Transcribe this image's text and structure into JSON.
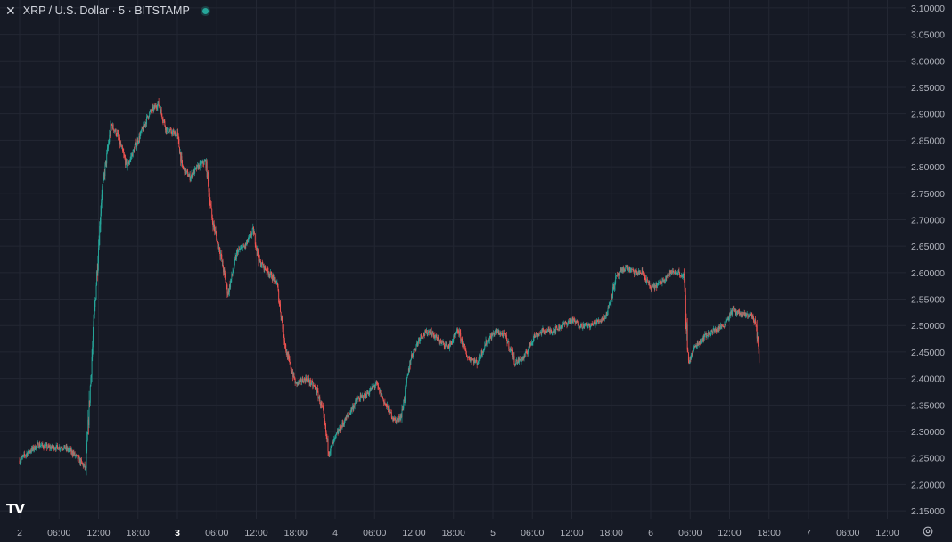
{
  "header": {
    "symbol_title": "XRP / U.S. Dollar · 5 · BITSTAMP",
    "close_icon": "close-icon",
    "status_color": "#26a69a"
  },
  "logo_text": "TV",
  "colors": {
    "background": "#161a25",
    "grid": "#232733",
    "up": "#26a69a",
    "down": "#ef5350",
    "axis_text": "#b2b5be"
  },
  "chart_data": {
    "type": "candlestick",
    "interval": "5",
    "exchange": "BITSTAMP",
    "title": "XRP / U.S. Dollar · 5 · BITSTAMP",
    "y_axis": {
      "ylim": [
        2.135,
        3.115
      ],
      "ticks": [
        "3.10000",
        "3.05000",
        "3.00000",
        "2.95000",
        "2.90000",
        "2.85000",
        "2.80000",
        "2.75000",
        "2.70000",
        "2.65000",
        "2.60000",
        "2.55000",
        "2.50000",
        "2.45000",
        "2.40000",
        "2.35000",
        "2.30000",
        "2.25000",
        "2.20000",
        "2.15000"
      ],
      "position": "right"
    },
    "x_axis": {
      "ticks": [
        {
          "label": "2",
          "bold": false
        },
        {
          "label": "06:00",
          "bold": false
        },
        {
          "label": "12:00",
          "bold": false
        },
        {
          "label": "18:00",
          "bold": false
        },
        {
          "label": "3",
          "bold": true
        },
        {
          "label": "06:00",
          "bold": false
        },
        {
          "label": "12:00",
          "bold": false
        },
        {
          "label": "18:00",
          "bold": false
        },
        {
          "label": "4",
          "bold": false
        },
        {
          "label": "06:00",
          "bold": false
        },
        {
          "label": "12:00",
          "bold": false
        },
        {
          "label": "18:00",
          "bold": false
        },
        {
          "label": "5",
          "bold": false
        },
        {
          "label": "06:00",
          "bold": false
        },
        {
          "label": "12:00",
          "bold": false
        },
        {
          "label": "18:00",
          "bold": false
        },
        {
          "label": "6",
          "bold": false
        },
        {
          "label": "06:00",
          "bold": false
        },
        {
          "label": "12:00",
          "bold": false
        },
        {
          "label": "18:00",
          "bold": false
        },
        {
          "label": "7",
          "bold": false
        },
        {
          "label": "06:00",
          "bold": false
        },
        {
          "label": "12:00",
          "bold": false
        }
      ]
    },
    "grid": true,
    "price_path": [
      [
        0,
        2.245
      ],
      [
        0.05,
        2.26
      ],
      [
        0.12,
        2.275
      ],
      [
        0.18,
        2.27
      ],
      [
        0.22,
        2.27
      ],
      [
        0.28,
        2.27
      ],
      [
        0.33,
        2.262
      ],
      [
        0.38,
        2.245
      ],
      [
        0.42,
        2.23
      ],
      [
        0.46,
        2.45
      ],
      [
        0.52,
        2.75
      ],
      [
        0.58,
        2.88
      ],
      [
        0.62,
        2.86
      ],
      [
        0.68,
        2.8
      ],
      [
        0.75,
        2.85
      ],
      [
        0.82,
        2.9
      ],
      [
        0.88,
        2.92
      ],
      [
        0.93,
        2.87
      ],
      [
        1.0,
        2.86
      ],
      [
        1.03,
        2.8
      ],
      [
        1.08,
        2.78
      ],
      [
        1.13,
        2.8
      ],
      [
        1.18,
        2.81
      ],
      [
        1.22,
        2.7
      ],
      [
        1.27,
        2.64
      ],
      [
        1.32,
        2.56
      ],
      [
        1.38,
        2.64
      ],
      [
        1.43,
        2.65
      ],
      [
        1.48,
        2.68
      ],
      [
        1.52,
        2.62
      ],
      [
        1.58,
        2.6
      ],
      [
        1.63,
        2.58
      ],
      [
        1.69,
        2.45
      ],
      [
        1.75,
        2.39
      ],
      [
        1.82,
        2.4
      ],
      [
        1.88,
        2.38
      ],
      [
        1.92,
        2.34
      ],
      [
        1.96,
        2.26
      ],
      [
        2.02,
        2.3
      ],
      [
        2.08,
        2.33
      ],
      [
        2.14,
        2.36
      ],
      [
        2.2,
        2.37
      ],
      [
        2.26,
        2.39
      ],
      [
        2.32,
        2.35
      ],
      [
        2.38,
        2.32
      ],
      [
        2.42,
        2.33
      ],
      [
        2.48,
        2.44
      ],
      [
        2.54,
        2.48
      ],
      [
        2.6,
        2.49
      ],
      [
        2.66,
        2.47
      ],
      [
        2.72,
        2.46
      ],
      [
        2.78,
        2.49
      ],
      [
        2.84,
        2.44
      ],
      [
        2.9,
        2.43
      ],
      [
        2.96,
        2.47
      ],
      [
        3.02,
        2.49
      ],
      [
        3.08,
        2.48
      ],
      [
        3.14,
        2.43
      ],
      [
        3.2,
        2.44
      ],
      [
        3.26,
        2.48
      ],
      [
        3.32,
        2.49
      ],
      [
        3.38,
        2.49
      ],
      [
        3.44,
        2.5
      ],
      [
        3.5,
        2.51
      ],
      [
        3.56,
        2.5
      ],
      [
        3.62,
        2.5
      ],
      [
        3.68,
        2.51
      ],
      [
        3.72,
        2.52
      ],
      [
        3.78,
        2.59
      ],
      [
        3.84,
        2.61
      ],
      [
        3.9,
        2.6
      ],
      [
        3.95,
        2.6
      ],
      [
        4.0,
        2.57
      ],
      [
        4.06,
        2.58
      ],
      [
        4.12,
        2.6
      ],
      [
        4.18,
        2.6
      ],
      [
        4.21,
        2.59
      ],
      [
        4.24,
        2.43
      ],
      [
        4.28,
        2.46
      ],
      [
        4.34,
        2.48
      ],
      [
        4.4,
        2.49
      ],
      [
        4.46,
        2.5
      ],
      [
        4.52,
        2.53
      ],
      [
        4.58,
        2.52
      ],
      [
        4.64,
        2.52
      ],
      [
        4.67,
        2.5
      ],
      [
        4.69,
        2.43
      ]
    ]
  }
}
